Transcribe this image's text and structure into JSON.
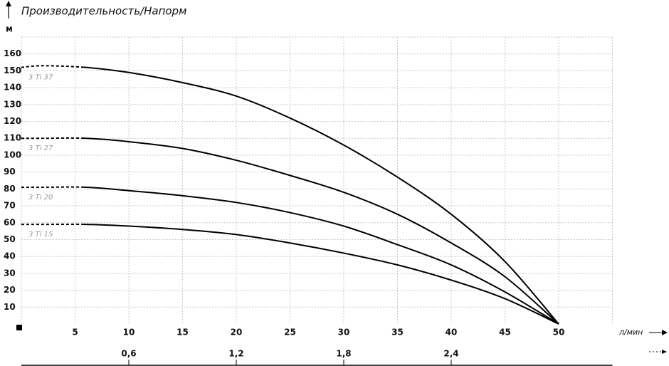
{
  "chart_data": {
    "type": "line",
    "title": "Производительность/Напорм",
    "y_label": "м",
    "x_label": "л/мин",
    "x": [
      0,
      2,
      6,
      10,
      15,
      20,
      25,
      30,
      35,
      40,
      45,
      50
    ],
    "series": [
      {
        "name": "3 Ti 37",
        "color": "#000000",
        "values": [
          152,
          153,
          152,
          149,
          143,
          135,
          122,
          106,
          87,
          65,
          37,
          0
        ]
      },
      {
        "name": "3 Ti 27",
        "color": "#000000",
        "values": [
          110,
          110,
          110,
          108,
          104,
          97,
          88,
          78,
          65,
          48,
          28,
          0
        ]
      },
      {
        "name": "3 Ti 20",
        "color": "#000000",
        "values": [
          81,
          81,
          81,
          79,
          76,
          72,
          66,
          58,
          47,
          35,
          19,
          0
        ]
      },
      {
        "name": "3 Ti 15",
        "color": "#000000",
        "values": [
          59,
          59,
          59,
          58,
          56,
          53,
          48,
          42,
          35,
          26,
          15,
          0
        ]
      }
    ],
    "dashed_until_x": 6,
    "xlim": [
      0,
      55
    ],
    "xticks": [
      5,
      10,
      15,
      20,
      25,
      30,
      35,
      40,
      45,
      50
    ],
    "ylim": [
      0,
      170
    ],
    "yticks": [
      10,
      20,
      30,
      40,
      50,
      60,
      70,
      80,
      90,
      100,
      110,
      120,
      130,
      140,
      150,
      160
    ],
    "x2lim": [
      0,
      3.3
    ],
    "x2ticks": [
      {
        "value": 0.6,
        "label": "0,6"
      },
      {
        "value": 1.2,
        "label": "1,2"
      },
      {
        "value": 1.8,
        "label": "1,8"
      },
      {
        "value": 2.4,
        "label": "2,4"
      }
    ],
    "grid": true
  }
}
